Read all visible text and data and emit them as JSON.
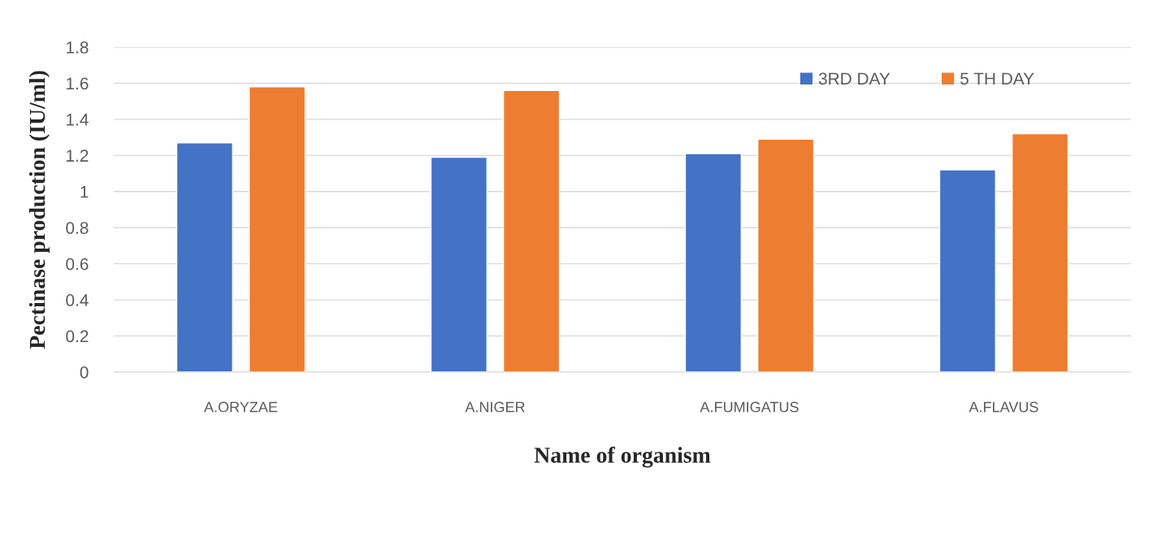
{
  "chart_data": {
    "type": "bar",
    "xlabel": "Name of organism",
    "ylabel": "Pectinase production (IU/ml)",
    "categories": [
      "A.ORYZAE",
      "A.NIGER",
      "A.FUMIGATUS",
      "A.FLAVUS"
    ],
    "series": [
      {
        "name": "3RD DAY",
        "color": "#4472c4",
        "values": [
          1.27,
          1.19,
          1.21,
          1.12
        ]
      },
      {
        "name": "5 TH DAY",
        "color": "#ed7d31",
        "values": [
          1.58,
          1.56,
          1.29,
          1.32
        ]
      }
    ],
    "ylim": [
      0,
      1.8
    ],
    "yticks": [
      0,
      0.2,
      0.4,
      0.6,
      0.8,
      1,
      1.2,
      1.4,
      1.6,
      1.8
    ],
    "grid": "y",
    "legend": "top right"
  }
}
